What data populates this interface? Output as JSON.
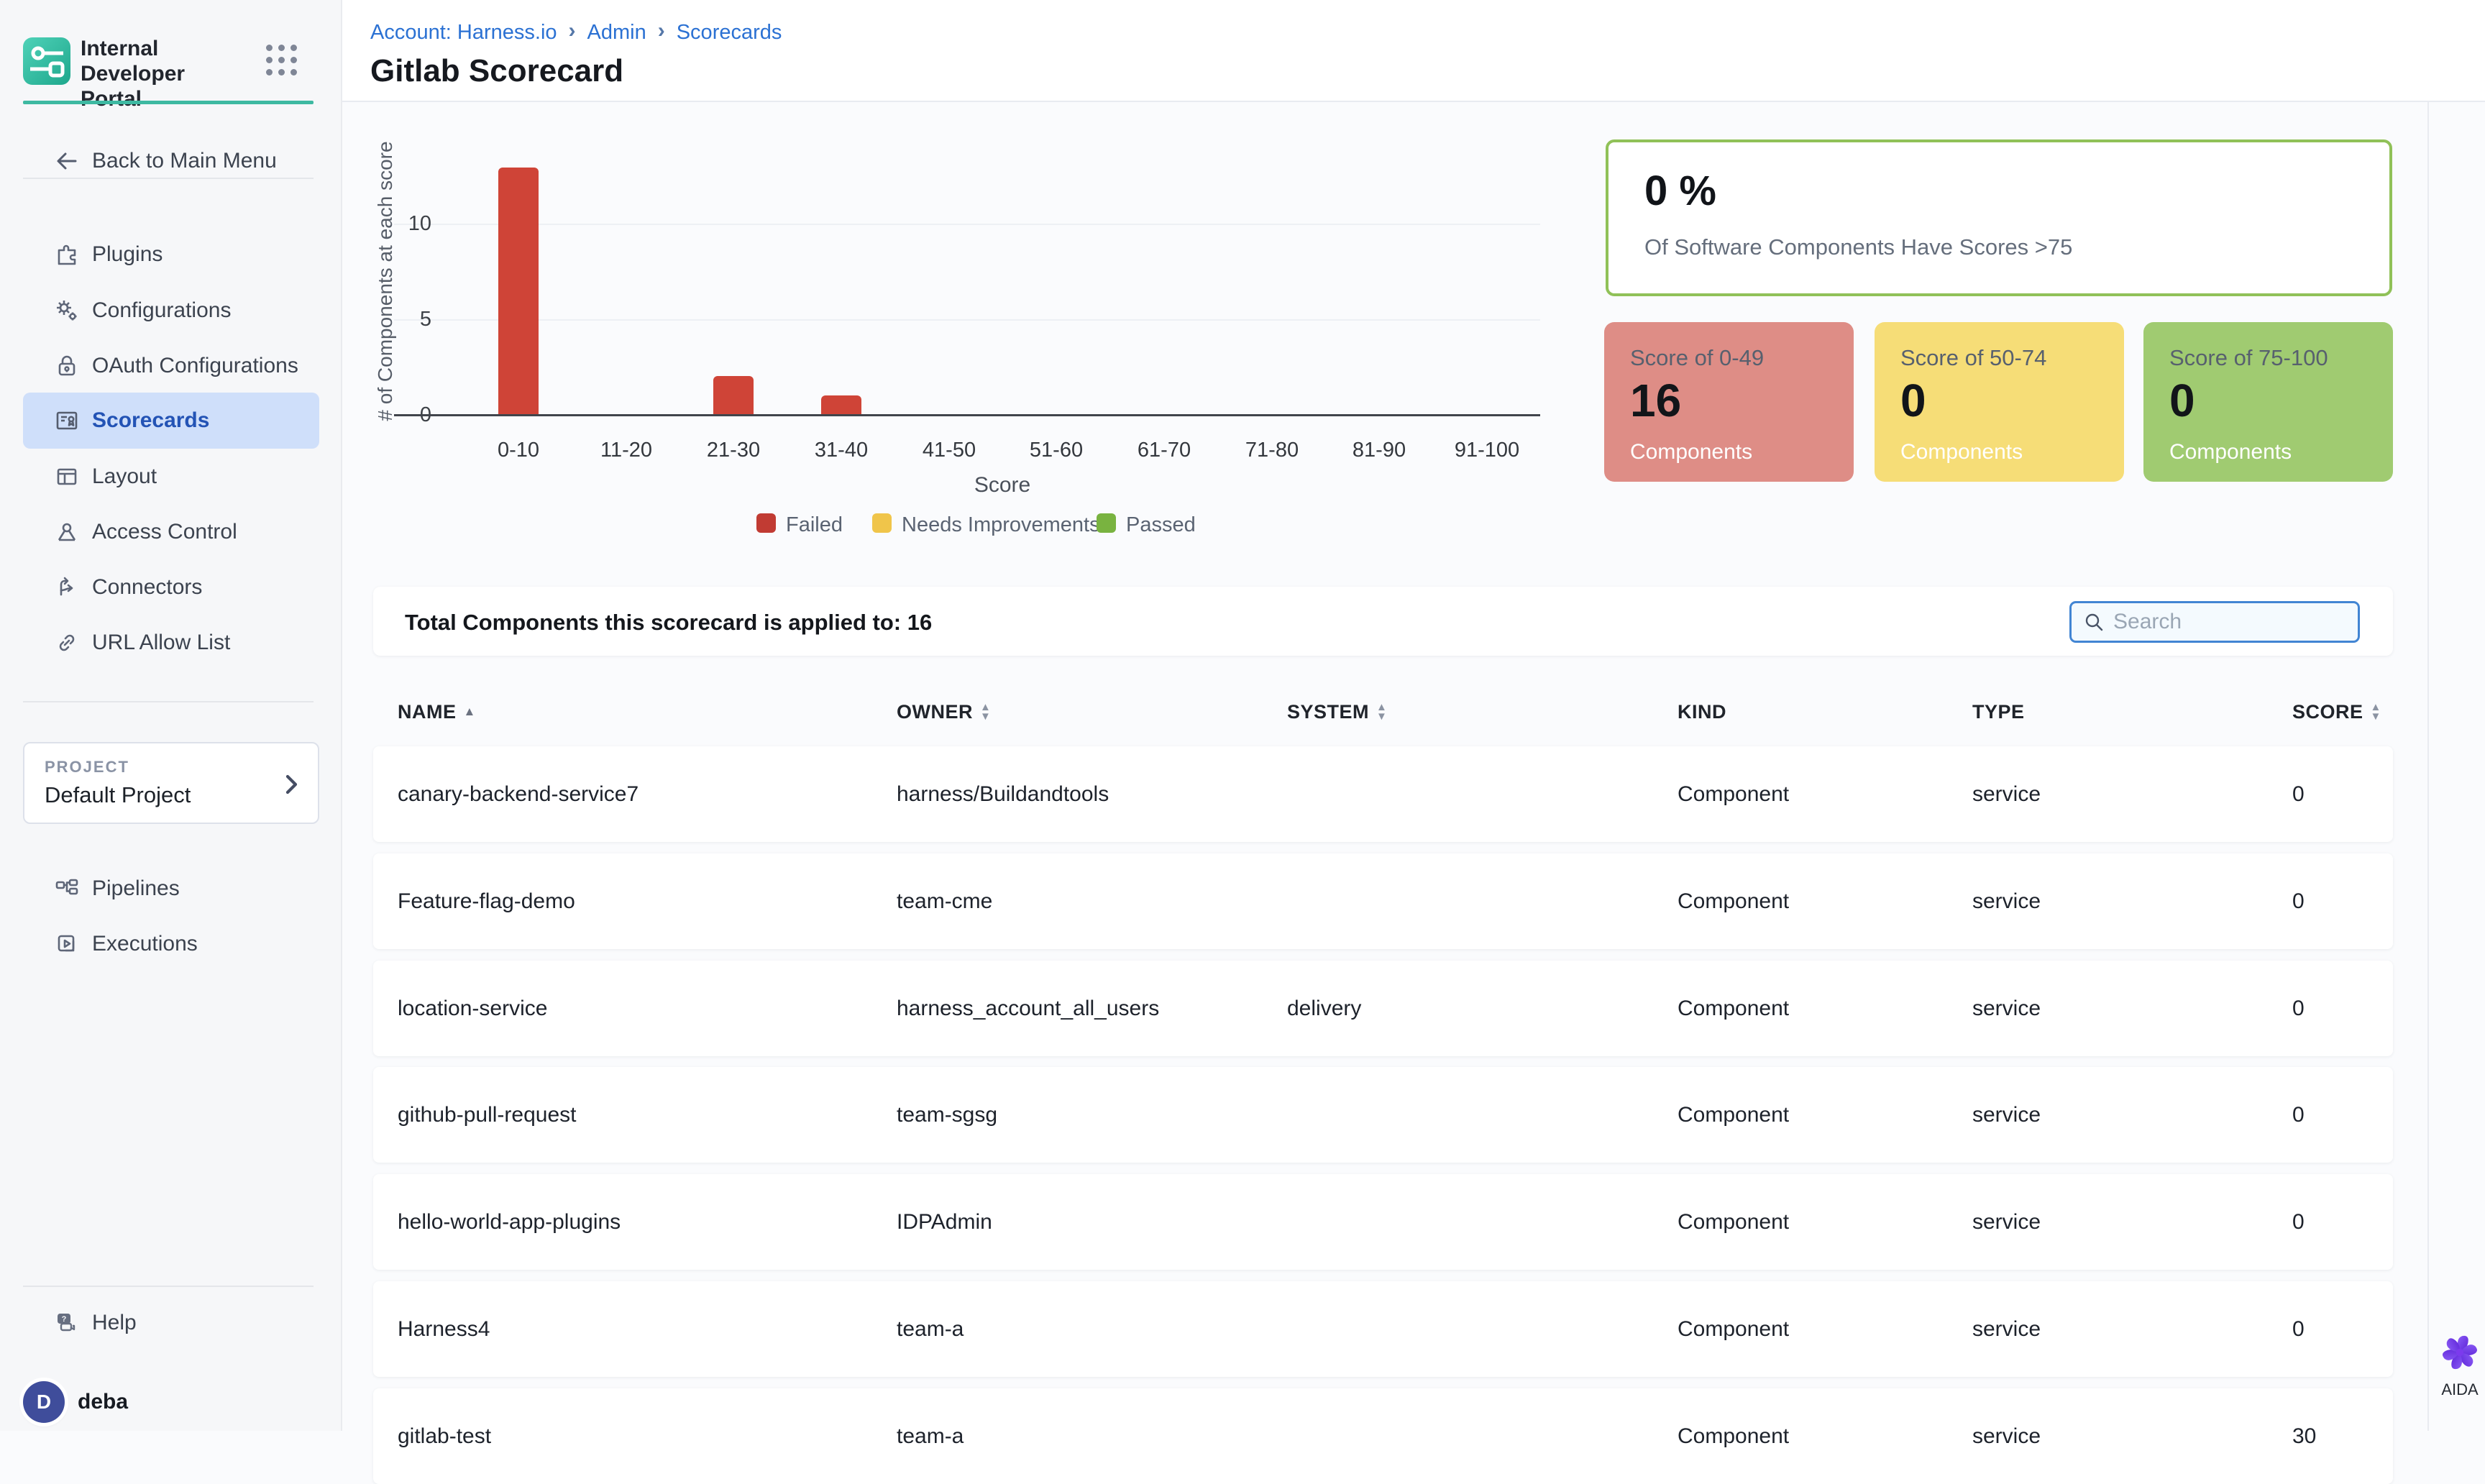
{
  "sidebar": {
    "logo_title": "Internal Developer Portal",
    "back_label": "Back to Main Menu",
    "items": [
      {
        "label": "Plugins"
      },
      {
        "label": "Configurations"
      },
      {
        "label": "OAuth Configurations"
      },
      {
        "label": "Scorecards",
        "selected": true
      },
      {
        "label": "Layout"
      },
      {
        "label": "Access Control"
      },
      {
        "label": "Connectors"
      },
      {
        "label": "URL Allow List"
      }
    ],
    "project_label": "PROJECT",
    "project_name": "Default Project",
    "project_items": [
      {
        "label": "Pipelines"
      },
      {
        "label": "Executions"
      }
    ],
    "help_label": "Help",
    "user_initial": "D",
    "user_name": "deba"
  },
  "header": {
    "breadcrumb": {
      "account": "Account: Harness.io",
      "admin": "Admin",
      "scorecards": "Scorecards"
    },
    "title": "Gitlab Scorecard"
  },
  "chart_data": {
    "type": "bar",
    "categories": [
      "0-10",
      "11-20",
      "21-30",
      "31-40",
      "41-50",
      "51-60",
      "61-70",
      "71-80",
      "81-90",
      "91-100"
    ],
    "values": [
      13,
      0,
      2,
      1,
      0,
      0,
      0,
      0,
      0,
      0
    ],
    "title": "",
    "xlabel": "Score",
    "ylabel": "# of Components at each score",
    "yticks": [
      0,
      5,
      10
    ],
    "ylim": [
      0,
      13.5
    ],
    "grid": "horizontal",
    "bar_color": "#cf4437",
    "legend_position": "bottom",
    "legend": [
      {
        "label": "Failed",
        "color": "#c13b33"
      },
      {
        "label": "Needs Improvements",
        "color": "#f0c54a"
      },
      {
        "label": "Passed",
        "color": "#79b340"
      }
    ]
  },
  "summary": {
    "percent": "0 %",
    "percent_caption": "Of Software Components Have Scores >75",
    "percent_border_color": "#90c158",
    "cards": [
      {
        "title": "Score of 0-49",
        "count": "16",
        "caption": "Components",
        "color": "#de8d86"
      },
      {
        "title": "Score of 50-74",
        "count": "0",
        "caption": "Components",
        "color": "#f6dd77"
      },
      {
        "title": "Score of 75-100",
        "count": "0",
        "caption": "Components",
        "color": "#a0cb71"
      }
    ]
  },
  "table": {
    "total_label": "Total Components this scorecard is applied to: 16",
    "search_placeholder": "Search",
    "columns": [
      {
        "label": "NAME",
        "sort": "asc"
      },
      {
        "label": "OWNER",
        "sort": "both"
      },
      {
        "label": "SYSTEM",
        "sort": "both"
      },
      {
        "label": "KIND",
        "sort": "none"
      },
      {
        "label": "TYPE",
        "sort": "none"
      },
      {
        "label": "SCORE",
        "sort": "both"
      }
    ],
    "rows": [
      {
        "name": "canary-backend-service7",
        "owner": "harness/Buildandtools",
        "system": "",
        "kind": "Component",
        "type": "service",
        "score": "0"
      },
      {
        "name": "Feature-flag-demo",
        "owner": "team-cme",
        "system": "",
        "kind": "Component",
        "type": "service",
        "score": "0"
      },
      {
        "name": "location-service",
        "owner": "harness_account_all_users",
        "system": "delivery",
        "kind": "Component",
        "type": "service",
        "score": "0"
      },
      {
        "name": "github-pull-request",
        "owner": "team-sgsg",
        "system": "",
        "kind": "Component",
        "type": "service",
        "score": "0"
      },
      {
        "name": "hello-world-app-plugins",
        "owner": "IDPAdmin",
        "system": "",
        "kind": "Component",
        "type": "service",
        "score": "0"
      },
      {
        "name": "Harness4",
        "owner": "team-a",
        "system": "",
        "kind": "Component",
        "type": "service",
        "score": "0"
      },
      {
        "name": "gitlab-test",
        "owner": "team-a",
        "system": "",
        "kind": "Component",
        "type": "service",
        "score": "30"
      }
    ]
  },
  "aida": {
    "label": "AIDA"
  }
}
